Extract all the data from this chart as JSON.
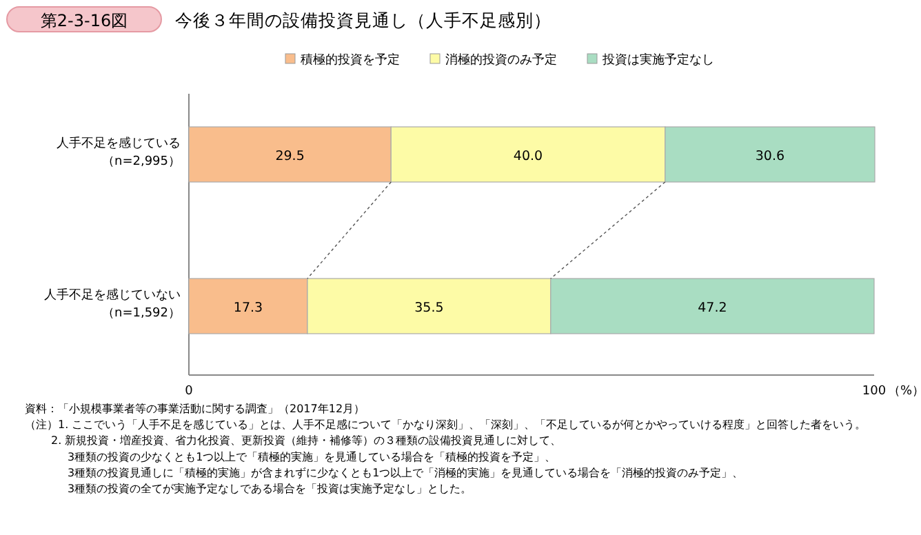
{
  "chart_data": {
    "type": "bar",
    "orientation": "horizontal",
    "stacked": true,
    "title": "今後３年間の設備投資見通し（人手不足感別）",
    "categories": [
      "人手不足を感じている（n=2,995）",
      "人手不足を感じていない（n=1,592）"
    ],
    "series": [
      {
        "name": "積極的投資を予定",
        "color": "#f9bd8c",
        "values": [
          29.5,
          17.3
        ]
      },
      {
        "name": "消極的投資のみ予定",
        "color": "#fdfba6",
        "values": [
          40.0,
          35.5
        ]
      },
      {
        "name": "投資は実施予定なし",
        "color": "#a9ddc2",
        "values": [
          30.6,
          47.2
        ]
      }
    ],
    "value_labels": [
      [
        "29.5",
        "17.3"
      ],
      [
        "40.0",
        "35.5"
      ],
      [
        "30.6",
        "47.2"
      ]
    ],
    "xlim": [
      0,
      100
    ],
    "xticks": [
      0,
      100
    ],
    "xlabel": "（%）",
    "legend": "top",
    "annotations": [
      "第2-3-16図",
      "資料：「小規模事業者等の事業活動に関する調査」（2017年12月）",
      "（注）1. ここでいう「人手不足を感じている」とは、人手不足感について「かなり深刻」、「深刻」、「不足しているが何とかやっていける程度」と回答した者をいう。",
      "2. 新規投資・増産投資、省力化投資、更新投資（維持・補修等）の３種類の設備投資見通しに対して、\n3種類の投資の少なくとも1つ以上で「積極的実施」を見通している場合を「積極的投資を予定」、\n3種類の投資見通しに「積極的実施」が含まれずに少なくとも1つ以上で「消極的実施」を見通している場合を「消極的投資のみ予定」、\n3種類の投資の全てが実施予定なしである場合を「投資は実施予定なし」とした。"
    ]
  }
}
